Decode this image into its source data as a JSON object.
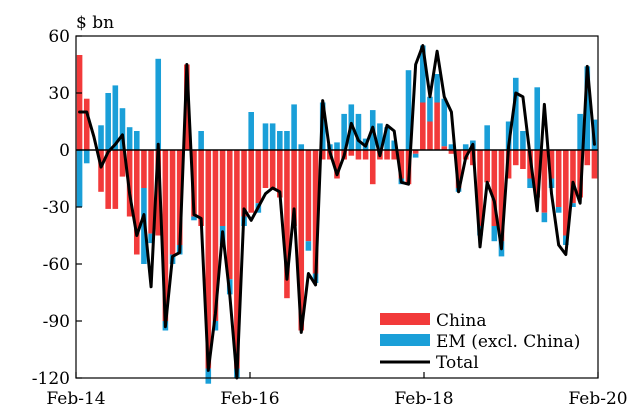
{
  "chart_data": {
    "type": "bar",
    "unit_label": "$ bn",
    "title": "",
    "xlabel": "",
    "ylabel": "",
    "ylim": [
      -120,
      60
    ],
    "yticks": [
      60,
      30,
      0,
      -30,
      -60,
      -90,
      -120
    ],
    "xtick_labels": [
      "Feb-14",
      "Feb-16",
      "Feb-18",
      "Feb-20"
    ],
    "x_range": [
      "Feb-14",
      "Feb-20"
    ],
    "grid": false,
    "stacked": true,
    "legend_position": "bottom-right",
    "colors": {
      "China": "#f23a3a",
      "EM (excl. China)": "#1a9fd8",
      "Total": "#000000"
    },
    "categories": [
      "Feb-14",
      "Mar-14",
      "Apr-14",
      "May-14",
      "Jun-14",
      "Jul-14",
      "Aug-14",
      "Sep-14",
      "Oct-14",
      "Nov-14",
      "Dec-14",
      "Jan-15",
      "Feb-15",
      "Mar-15",
      "Apr-15",
      "May-15",
      "Jun-15",
      "Jul-15",
      "Aug-15",
      "Sep-15",
      "Oct-15",
      "Nov-15",
      "Dec-15",
      "Jan-16",
      "Feb-16",
      "Mar-16",
      "Apr-16",
      "May-16",
      "Jun-16",
      "Jul-16",
      "Aug-16",
      "Sep-16",
      "Oct-16",
      "Nov-16",
      "Dec-16",
      "Jan-17",
      "Feb-17",
      "Mar-17",
      "Apr-17",
      "May-17",
      "Jun-17",
      "Jul-17",
      "Aug-17",
      "Sep-17",
      "Oct-17",
      "Nov-17",
      "Dec-17",
      "Jan-18",
      "Feb-18",
      "Mar-18",
      "Apr-18",
      "May-18",
      "Jun-18",
      "Jul-18",
      "Aug-18",
      "Sep-18",
      "Oct-18",
      "Nov-18",
      "Dec-18",
      "Jan-19",
      "Feb-19",
      "Mar-19",
      "Apr-19",
      "May-19",
      "Jun-19",
      "Jul-19",
      "Aug-19",
      "Sep-19",
      "Oct-19",
      "Nov-19",
      "Dec-19",
      "Jan-20",
      "Feb-20"
    ],
    "series": [
      {
        "name": "China",
        "values": [
          50,
          27,
          0,
          -22,
          -31,
          -31,
          -14,
          -35,
          -55,
          -20,
          -44,
          -45,
          -90,
          -55,
          -50,
          45,
          -35,
          -40,
          -115,
          -90,
          -40,
          -68,
          -115,
          -35,
          -33,
          -28,
          -20,
          -20,
          -25,
          -78,
          -40,
          -95,
          -48,
          -65,
          -5,
          -5,
          -15,
          -5,
          -3,
          -5,
          -5,
          -18,
          -5,
          -5,
          -5,
          -15,
          -18,
          -2,
          25,
          15,
          25,
          2,
          -2,
          -20,
          -5,
          -8,
          -40,
          -17,
          -40,
          -48,
          -15,
          -8,
          -10,
          -15,
          -25,
          -33,
          -15,
          -30,
          -45,
          -28,
          -25,
          -8,
          -15
        ]
      },
      {
        "name": "EM (excl. China)",
        "values": [
          -30,
          -7,
          0,
          13,
          30,
          34,
          22,
          12,
          10,
          -40,
          -5,
          48,
          -5,
          -5,
          -5,
          0,
          -2,
          10,
          -8,
          -5,
          -10,
          -8,
          -5,
          -5,
          20,
          -5,
          14,
          14,
          10,
          10,
          24,
          3,
          -5,
          -5,
          25,
          3,
          4,
          19,
          24,
          19,
          6,
          21,
          14,
          12,
          5,
          -3,
          42,
          -2,
          30,
          13,
          15,
          25,
          3,
          -2,
          3,
          5,
          -5,
          13,
          -8,
          -8,
          15,
          38,
          10,
          -5,
          33,
          -5,
          -5,
          -3,
          -5,
          -2,
          19,
          44,
          16
        ]
      },
      {
        "name": "Total",
        "values": [
          20,
          20,
          7,
          -9,
          -1,
          3,
          8,
          -23,
          -45,
          -34,
          -72,
          3,
          -93,
          -56,
          -54,
          45,
          -34,
          -36,
          -116,
          -86,
          -43,
          -76,
          -120,
          -31,
          -37,
          -30,
          -23,
          -20,
          -22,
          -68,
          -31,
          -96,
          -65,
          -71,
          26,
          -1,
          -13,
          -3,
          14,
          5,
          2,
          12,
          -3,
          13,
          10,
          -17,
          -18,
          45,
          55,
          28,
          52,
          28,
          20,
          -22,
          -4,
          3,
          -51,
          -17,
          -27,
          -52,
          2,
          30,
          28,
          -3,
          -32,
          24,
          -23,
          -50,
          -55,
          -17,
          -28,
          44,
          3
        ]
      }
    ]
  }
}
